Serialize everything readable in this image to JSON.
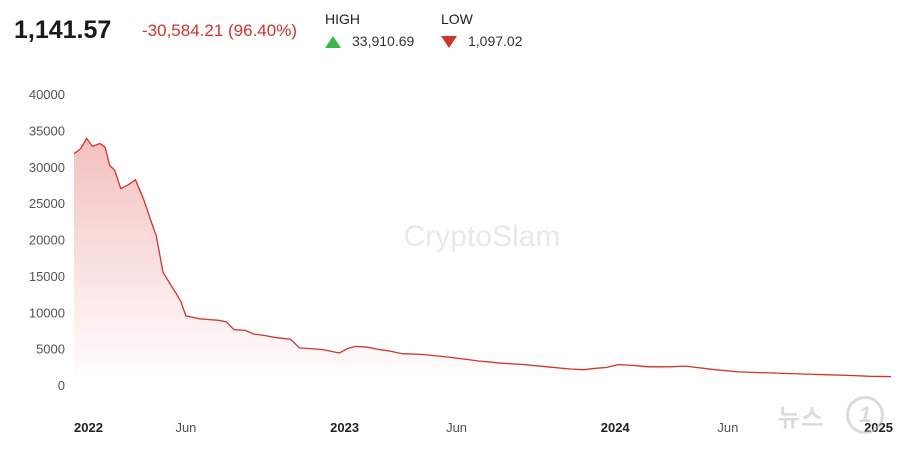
{
  "header": {
    "price": "1,141.57",
    "change": "-30,584.21 (96.40%)",
    "high_label": "HIGH",
    "high_value": "33,910.69",
    "low_label": "LOW",
    "low_value": "1,097.02"
  },
  "watermark": "CryptoSlam",
  "news_watermark": "뉴스1",
  "colors": {
    "line": "#d0342c",
    "fill_top": "#f3bcbc",
    "up": "#3cb54a",
    "down": "#d0342c",
    "axis_text": "#555555"
  },
  "chart_data": {
    "type": "area",
    "ylim": [
      0,
      40000
    ],
    "y_ticks": [
      0,
      5000,
      10000,
      15000,
      20000,
      25000,
      30000,
      35000,
      40000
    ],
    "x_tick_labels": [
      {
        "label": "2022",
        "date": "2022-01-01",
        "bold": true
      },
      {
        "label": "Jun",
        "date": "2022-06-01",
        "bold": false
      },
      {
        "label": "2023",
        "date": "2023-01-01",
        "bold": true
      },
      {
        "label": "Jun",
        "date": "2023-06-01",
        "bold": false
      },
      {
        "label": "2024",
        "date": "2024-01-01",
        "bold": true
      },
      {
        "label": "Jun",
        "date": "2024-06-01",
        "bold": false
      },
      {
        "label": "2025",
        "date": "2025-01-01",
        "bold": true
      }
    ],
    "xlim": [
      "2022-01-01",
      "2025-01-07"
    ],
    "grid": false,
    "series": [
      {
        "points": [
          [
            "2022-01-01",
            31800
          ],
          [
            "2022-01-10",
            32500
          ],
          [
            "2022-01-18",
            33900
          ],
          [
            "2022-01-26",
            32800
          ],
          [
            "2022-02-05",
            33200
          ],
          [
            "2022-02-12",
            32700
          ],
          [
            "2022-02-18",
            30200
          ],
          [
            "2022-02-25",
            29500
          ],
          [
            "2022-03-05",
            27000
          ],
          [
            "2022-03-15",
            27500
          ],
          [
            "2022-03-25",
            28200
          ],
          [
            "2022-04-05",
            25500
          ],
          [
            "2022-04-15",
            22500
          ],
          [
            "2022-04-22",
            20500
          ],
          [
            "2022-05-01",
            15500
          ],
          [
            "2022-05-10",
            14000
          ],
          [
            "2022-05-18",
            12700
          ],
          [
            "2022-05-25",
            11500
          ],
          [
            "2022-06-01",
            9500
          ],
          [
            "2022-06-10",
            9300
          ],
          [
            "2022-06-20",
            9100
          ],
          [
            "2022-07-01",
            9000
          ],
          [
            "2022-07-15",
            8900
          ],
          [
            "2022-07-25",
            8700
          ],
          [
            "2022-08-05",
            7600
          ],
          [
            "2022-08-20",
            7500
          ],
          [
            "2022-09-01",
            7000
          ],
          [
            "2022-09-15",
            6800
          ],
          [
            "2022-10-01",
            6500
          ],
          [
            "2022-10-20",
            6300
          ],
          [
            "2022-11-01",
            5100
          ],
          [
            "2022-11-15",
            5000
          ],
          [
            "2022-12-01",
            4900
          ],
          [
            "2022-12-15",
            4600
          ],
          [
            "2022-12-25",
            4400
          ],
          [
            "2023-01-05",
            5000
          ],
          [
            "2023-01-15",
            5300
          ],
          [
            "2023-02-01",
            5200
          ],
          [
            "2023-02-15",
            4900
          ],
          [
            "2023-03-01",
            4700
          ],
          [
            "2023-03-20",
            4300
          ],
          [
            "2023-04-15",
            4200
          ],
          [
            "2023-05-15",
            3900
          ],
          [
            "2023-06-01",
            3700
          ],
          [
            "2023-07-01",
            3300
          ],
          [
            "2023-08-01",
            3000
          ],
          [
            "2023-09-01",
            2800
          ],
          [
            "2023-10-01",
            2500
          ],
          [
            "2023-11-01",
            2200
          ],
          [
            "2023-11-20",
            2100
          ],
          [
            "2023-12-05",
            2300
          ],
          [
            "2023-12-20",
            2400
          ],
          [
            "2024-01-05",
            2800
          ],
          [
            "2024-01-25",
            2700
          ],
          [
            "2024-02-15",
            2500
          ],
          [
            "2024-03-15",
            2500
          ],
          [
            "2024-04-05",
            2600
          ],
          [
            "2024-04-20",
            2400
          ],
          [
            "2024-05-15",
            2100
          ],
          [
            "2024-06-15",
            1800
          ],
          [
            "2024-07-15",
            1700
          ],
          [
            "2024-08-15",
            1600
          ],
          [
            "2024-09-15",
            1500
          ],
          [
            "2024-10-15",
            1400
          ],
          [
            "2024-11-15",
            1300
          ],
          [
            "2024-12-10",
            1200
          ],
          [
            "2025-01-07",
            1150
          ]
        ]
      }
    ]
  }
}
